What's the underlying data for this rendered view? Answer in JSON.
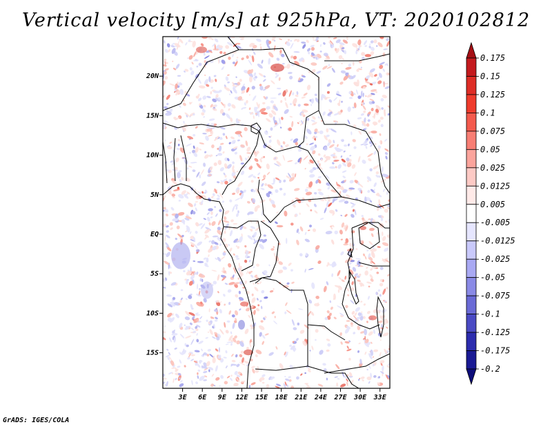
{
  "title": "Vertical velocity [m/s] at 925hPa, VT: 2020102812",
  "credit": "GrADS: IGES/COLA",
  "map": {
    "lat_labels": [
      "20N",
      "15N",
      "10N",
      "5N",
      "EQ",
      "5S",
      "10S",
      "15S"
    ],
    "lon_labels": [
      "3E",
      "6E",
      "9E",
      "12E",
      "15E",
      "18E",
      "21E",
      "24E",
      "27E",
      "30E",
      "33E"
    ],
    "lat_values": [
      20,
      15,
      10,
      5,
      0,
      -5,
      -10,
      -15
    ],
    "lon_values": [
      3,
      6,
      9,
      12,
      15,
      18,
      21,
      24,
      27,
      30,
      33
    ],
    "lon_range": [
      0,
      34.5
    ],
    "lat_range": [
      -19.5,
      25
    ]
  },
  "colorbar": {
    "labels": [
      "0.175",
      "0.15",
      "0.125",
      "0.1",
      "0.075",
      "0.05",
      "0.025",
      "0.0125",
      "0.005",
      "-0.005",
      "-0.0125",
      "-0.025",
      "-0.05",
      "-0.075",
      "-0.1",
      "-0.125",
      "-0.175",
      "-0.2"
    ],
    "colors": [
      "#a50f15",
      "#c41a1e",
      "#de2d26",
      "#ef3b2c",
      "#f45a4d",
      "#f87e74",
      "#fba49c",
      "#fdcac5",
      "#ffeae8",
      "#ffffff",
      "#e6e6ff",
      "#c9c9fb",
      "#a9a9f3",
      "#8a8ae6",
      "#6a6ad6",
      "#4a4ac4",
      "#2c2cae",
      "#1a1a94",
      "#0d0d7a"
    ]
  }
}
